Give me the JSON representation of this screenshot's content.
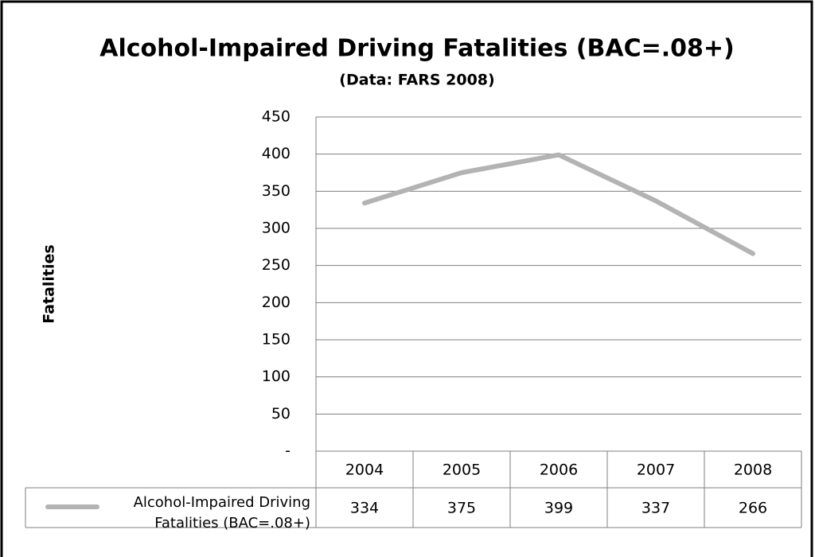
{
  "chart_data": {
    "type": "line",
    "title": "Alcohol-Impaired Driving Fatalities (BAC=.08+)",
    "subtitle": "(Data:  FARS 2008)",
    "y_axis_label": "Fatalities",
    "categories": [
      "2004",
      "2005",
      "2006",
      "2007",
      "2008"
    ],
    "series": [
      {
        "name": "Alcohol-Impaired Driving Fatalities (BAC=.08+)",
        "color": "#b3b3b3",
        "values": [
          334,
          375,
          399,
          337,
          266
        ]
      }
    ],
    "ylim": [
      0,
      450
    ],
    "yticks": [
      {
        "value": 0,
        "label": "-"
      },
      50,
      100,
      150,
      200,
      250,
      300,
      350,
      400,
      450
    ],
    "grid": true,
    "data_table": true
  }
}
